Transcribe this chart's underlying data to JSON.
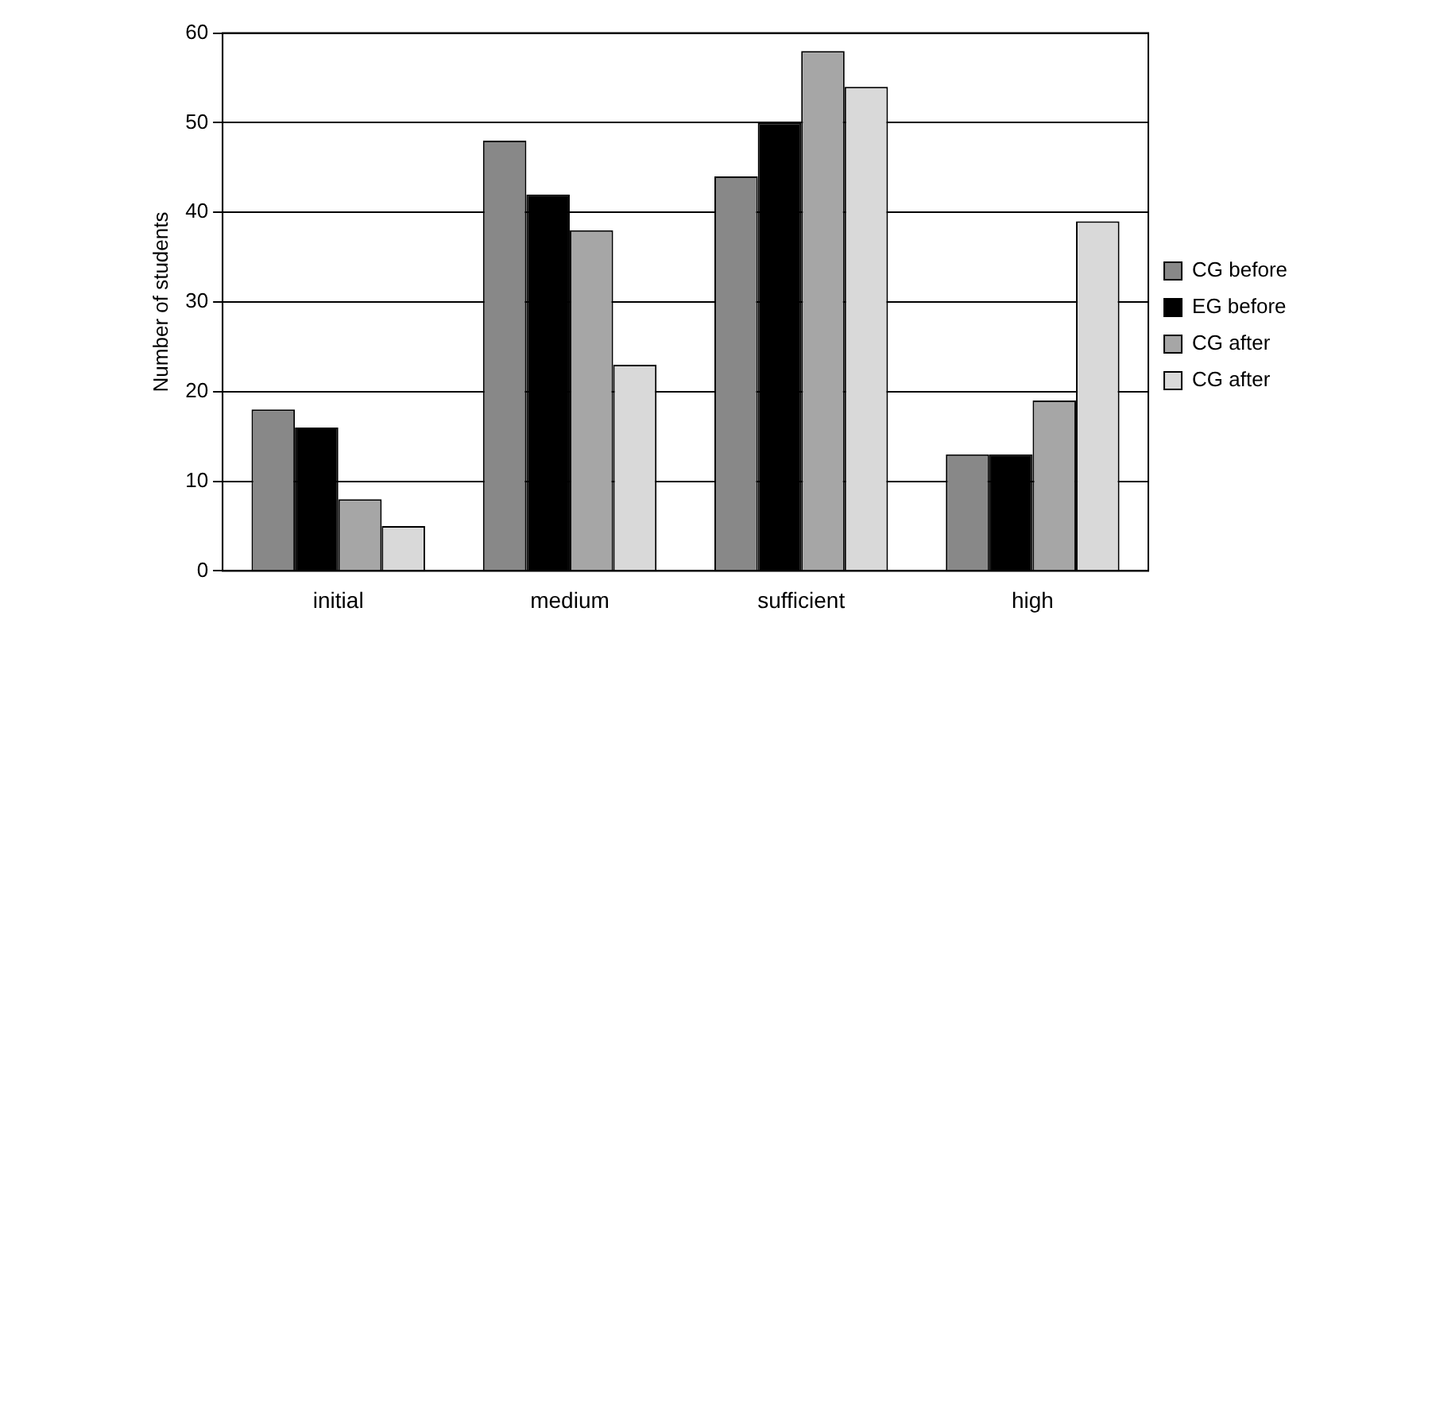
{
  "chart_data": {
    "type": "bar",
    "ylabel": "Number of students",
    "categories": [
      "initial",
      "medium",
      "sufficient",
      "high"
    ],
    "series": [
      {
        "name": "CG before",
        "color": "#888888",
        "values": [
          18,
          48,
          44,
          13
        ]
      },
      {
        "name": "EG before",
        "color": "#000000",
        "values": [
          16,
          42,
          50,
          13
        ]
      },
      {
        "name": "CG after",
        "color": "#a6a6a6",
        "values": [
          8,
          38,
          58,
          19
        ]
      },
      {
        "name": "CG after",
        "color": "#d9d9d9",
        "values": [
          5,
          23,
          54,
          39
        ]
      }
    ],
    "ylim": [
      0,
      60
    ],
    "yticks": [
      0,
      10,
      20,
      30,
      40,
      50,
      60
    ],
    "grid": "y",
    "legend": "right"
  }
}
